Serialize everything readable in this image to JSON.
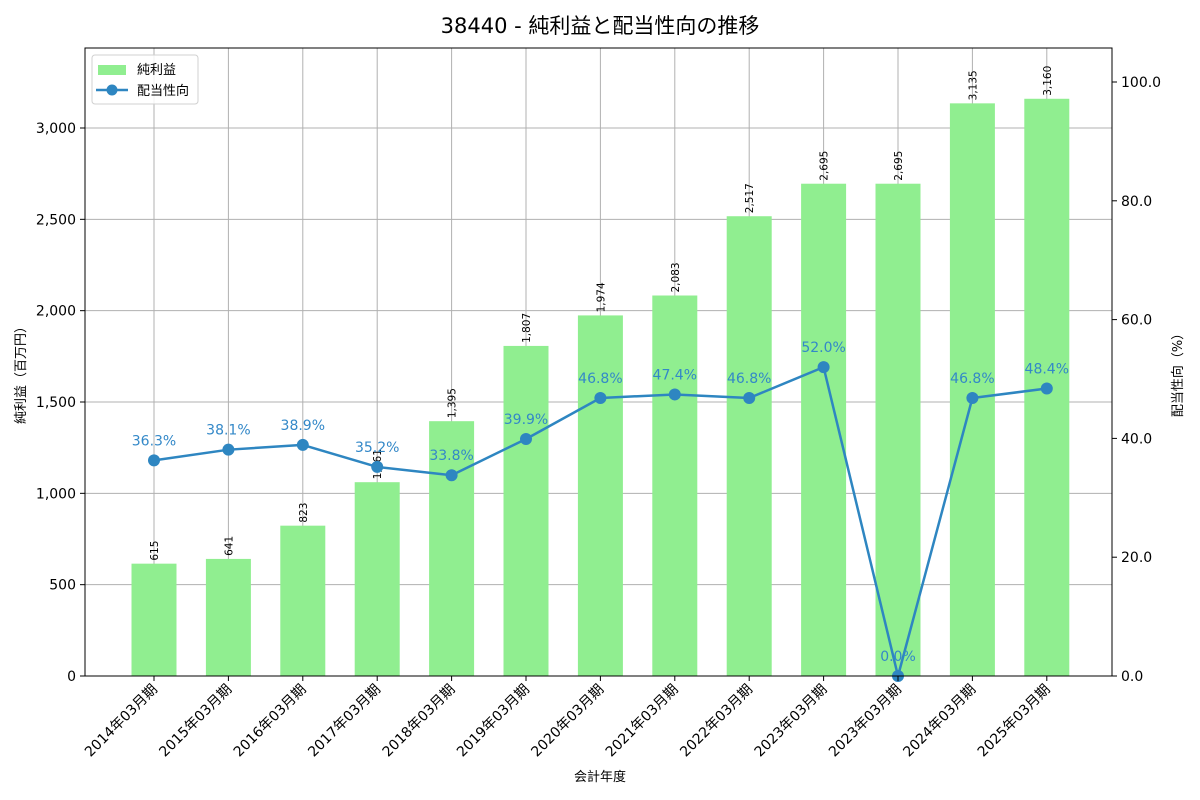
{
  "title": "38440 - 純利益と配当性向の推移",
  "colors": {
    "bar": "#90ee90",
    "line": "#2e86c1",
    "label_line": "#3388c8",
    "grid": "#b0b0b0",
    "axis": "#000000"
  },
  "legend": {
    "items": [
      {
        "label": "純利益",
        "type": "bar"
      },
      {
        "label": "配当性向",
        "type": "line"
      }
    ]
  },
  "axes": {
    "x_label": "会計年度",
    "y_left_label": "純利益（百万円）",
    "y_right_label": "配当性向（%）",
    "y_left_ticks": [
      "0",
      "500",
      "1,000",
      "1,500",
      "2,000",
      "2,500",
      "3,000"
    ],
    "y_right_ticks": [
      "0.0",
      "20.0",
      "40.0",
      "60.0",
      "80.0",
      "100.0"
    ]
  },
  "chart_data": {
    "type": "bar+line",
    "title": "38440 - 純利益と配当性向の推移",
    "xlabel": "会計年度",
    "ylabel": "純利益（百万円）",
    "ylabel_right": "配当性向（%）",
    "categories": [
      "2014年03月期",
      "2015年03月期",
      "2016年03月期",
      "2017年03月期",
      "2018年03月期",
      "2019年03月期",
      "2020年03月期",
      "2021年03月期",
      "2022年03月期",
      "2023年03月期",
      "2023年03月期",
      "2024年03月期",
      "2025年03月期"
    ],
    "series": [
      {
        "name": "純利益",
        "type": "bar",
        "axis": "left",
        "values": [
          615,
          641,
          823,
          1061,
          1395,
          1807,
          1974,
          2083,
          2517,
          2695,
          2695,
          3135,
          3160
        ],
        "labels": [
          "615",
          "641",
          "823",
          "1,061",
          "1,395",
          "1,807",
          "1,974",
          "2,083",
          "2,517",
          "2,695",
          "2,695",
          "3,135",
          "3,160"
        ]
      },
      {
        "name": "配当性向",
        "type": "line",
        "axis": "right",
        "values": [
          36.3,
          38.1,
          38.9,
          35.2,
          33.8,
          39.9,
          46.8,
          47.4,
          46.8,
          52.0,
          0.0,
          46.8,
          48.4
        ],
        "labels": [
          "36.3%",
          "38.1%",
          "38.9%",
          "35.2%",
          "33.8%",
          "39.9%",
          "46.8%",
          "47.4%",
          "46.8%",
          "52.0%",
          "0.0%",
          "46.8%",
          "48.4%"
        ]
      }
    ],
    "ylim": [
      0,
      3438
    ],
    "ylim_right": [
      0,
      105.7
    ],
    "grid": true,
    "legend_position": "upper left"
  }
}
